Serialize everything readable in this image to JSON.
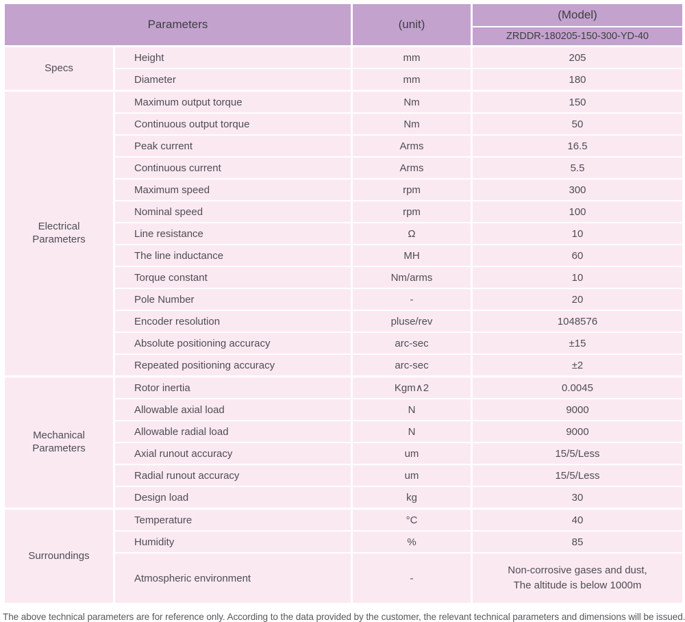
{
  "table": {
    "header": {
      "parameters_label": "Parameters",
      "unit_label": "(unit)",
      "model_label": "(Model)",
      "model_value": "ZRDDR-180205-150-300-YD-40"
    },
    "sections": [
      {
        "name": "Specs",
        "rows": [
          [
            "Height",
            "mm",
            "205"
          ],
          [
            "Diameter",
            "mm",
            "180"
          ]
        ]
      },
      {
        "name": "Electrical Parameters",
        "rows": [
          [
            "Maximum output torque",
            "Nm",
            "150"
          ],
          [
            "Continuous output torque",
            "Nm",
            "50"
          ],
          [
            "Peak current",
            "Arms",
            "16.5"
          ],
          [
            "Continuous current",
            "Arms",
            "5.5"
          ],
          [
            "Maximum speed",
            "rpm",
            "300"
          ],
          [
            "Nominal speed",
            "rpm",
            "100"
          ],
          [
            "Line resistance",
            "Ω",
            "10"
          ],
          [
            "The line inductance",
            "MH",
            "60"
          ],
          [
            "Torque constant",
            "Nm/arms",
            "10"
          ],
          [
            "Pole Number",
            "-",
            "20"
          ],
          [
            "Encoder resolution",
            "pluse/rev",
            "1048576"
          ],
          [
            "Absolute positioning accuracy",
            "arc-sec",
            "±15"
          ],
          [
            "Repeated positioning accuracy",
            "arc-sec",
            "±2"
          ]
        ]
      },
      {
        "name": "Mechanical Parameters",
        "rows": [
          [
            "Rotor inertia",
            "Kgm∧2",
            "0.0045"
          ],
          [
            "Allowable axial load",
            "N",
            "9000"
          ],
          [
            "Allowable radial load",
            "N",
            "9000"
          ],
          [
            "Axial runout accuracy",
            "um",
            "15/5/Less"
          ],
          [
            "Radial runout accuracy",
            "um",
            "15/5/Less"
          ],
          [
            "Design load",
            "kg",
            "30"
          ]
        ]
      },
      {
        "name": "Surroundings",
        "rows": [
          [
            "Temperature",
            "°C",
            "40"
          ],
          [
            "Humidity",
            "%",
            "85"
          ],
          [
            "Atmospheric environment",
            "-",
            "Non-corrosive gases and dust,\nThe altitude is below 1000m"
          ]
        ]
      }
    ]
  },
  "footer": {
    "note": "The above technical parameters are for reference only. According to the data provided by the customer, the relevant technical parameters and dimensions will be issued."
  },
  "colors": {
    "header_bg": "#c3a2ce",
    "row_bg": "#fbe9f2",
    "grid": "#ffffff",
    "text": "#4d4d52"
  }
}
